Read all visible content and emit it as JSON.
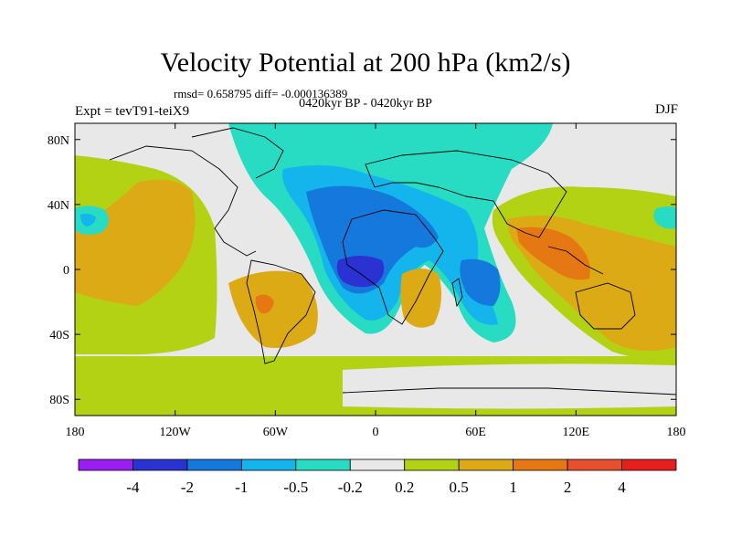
{
  "header": {
    "title": "Velocity Potential at 200 hPa (km2/s)",
    "stats": "rmsd= 0.658795 diff= -0.000136389",
    "subtitle": "0420kyr BP - 0420kyr BP",
    "left_label": "Expt = tevT91-teiX9",
    "right_label": "DJF"
  },
  "chart_data": {
    "type": "heatmap",
    "title": "Velocity Potential at 200 hPa (km2/s)",
    "x_ticks": [
      "180",
      "120W",
      "60W",
      "0",
      "60E",
      "120E",
      "180"
    ],
    "y_ticks": [
      "80N",
      "40N",
      "0",
      "40S",
      "80S"
    ],
    "xlim": [
      -180,
      180
    ],
    "ylim": [
      -90,
      90
    ],
    "colorbar": {
      "labels": [
        "-4",
        "-2",
        "-1",
        "-0.5",
        "-0.2",
        "0.2",
        "0.5",
        "1",
        "2",
        "4"
      ],
      "colors": [
        "#9a1ef2",
        "#2a32d2",
        "#1478dc",
        "#14b4ec",
        "#28dcc4",
        "#e8e8e8",
        "#b4d214",
        "#dcaa14",
        "#e67814",
        "#e65030",
        "#e61e1e"
      ]
    },
    "regions": [
      {
        "lon": -150,
        "lat": 15,
        "value": 0.7
      },
      {
        "lon": -35,
        "lat": 45,
        "value": -0.4
      },
      {
        "lon": -20,
        "lat": 20,
        "value": -1.1
      },
      {
        "lon": 0,
        "lat": -5,
        "value": -2.5
      },
      {
        "lon": 55,
        "lat": -10,
        "value": -1.0
      },
      {
        "lon": 110,
        "lat": 10,
        "value": 1.3
      },
      {
        "lon": -55,
        "lat": -20,
        "value": 1.2
      },
      {
        "lon": 30,
        "lat": -15,
        "value": 0.8
      },
      {
        "lon": 140,
        "lat": -25,
        "value": 0.7
      },
      {
        "lon": 0,
        "lat": -60,
        "value": 0.0
      },
      {
        "lon": 0,
        "lat": -80,
        "value": 0.35
      }
    ]
  }
}
